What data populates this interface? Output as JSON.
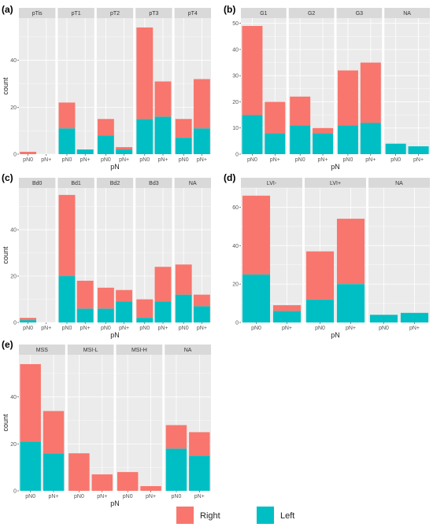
{
  "colors": {
    "right": "#F8766D",
    "left": "#00BFC4",
    "panel_bg": "#EBEBEB",
    "strip_bg": "#D9D9D9",
    "grid": "#FFFFFF"
  },
  "legend": {
    "right_label": "Right",
    "left_label": "Left"
  },
  "chart_data": [
    {
      "tag": "(a)",
      "type": "bar",
      "stacked": true,
      "xlabel": "pN",
      "ylabel": "count",
      "ylim": [
        0,
        58
      ],
      "yticks": [
        0,
        20,
        40
      ],
      "facets": [
        {
          "label": "pTis",
          "categories": [
            "pN0",
            "pN+"
          ],
          "series": [
            {
              "name": "Left",
              "values": [
                0,
                0
              ]
            },
            {
              "name": "Right",
              "values": [
                1,
                0
              ]
            }
          ]
        },
        {
          "label": "pT1",
          "categories": [
            "pN0",
            "pN+"
          ],
          "series": [
            {
              "name": "Left",
              "values": [
                11,
                2
              ]
            },
            {
              "name": "Right",
              "values": [
                11,
                0
              ]
            }
          ]
        },
        {
          "label": "pT2",
          "categories": [
            "pN0",
            "pN+"
          ],
          "series": [
            {
              "name": "Left",
              "values": [
                8,
                2
              ]
            },
            {
              "name": "Right",
              "values": [
                7,
                1
              ]
            }
          ]
        },
        {
          "label": "pT3",
          "categories": [
            "pN0",
            "pN+"
          ],
          "series": [
            {
              "name": "Left",
              "values": [
                15,
                16
              ]
            },
            {
              "name": "Right",
              "values": [
                39,
                15
              ]
            }
          ]
        },
        {
          "label": "pT4",
          "categories": [
            "pN0",
            "pN+"
          ],
          "series": [
            {
              "name": "Left",
              "values": [
                7,
                11
              ]
            },
            {
              "name": "Right",
              "values": [
                8,
                21
              ]
            }
          ]
        }
      ]
    },
    {
      "tag": "(b)",
      "type": "bar",
      "stacked": true,
      "xlabel": "pN",
      "ylabel": "",
      "ylim": [
        0,
        52
      ],
      "yticks": [
        0,
        10,
        20,
        30,
        40,
        50
      ],
      "facets": [
        {
          "label": "G1",
          "categories": [
            "pN0",
            "pN+"
          ],
          "series": [
            {
              "name": "Left",
              "values": [
                15,
                8
              ]
            },
            {
              "name": "Right",
              "values": [
                34,
                12
              ]
            }
          ]
        },
        {
          "label": "G2",
          "categories": [
            "pN0",
            "pN+"
          ],
          "series": [
            {
              "name": "Left",
              "values": [
                11,
                8
              ]
            },
            {
              "name": "Right",
              "values": [
                11,
                2
              ]
            }
          ]
        },
        {
          "label": "G3",
          "categories": [
            "pN0",
            "pN+"
          ],
          "series": [
            {
              "name": "Left",
              "values": [
                11,
                12
              ]
            },
            {
              "name": "Right",
              "values": [
                21,
                23
              ]
            }
          ]
        },
        {
          "label": "NA",
          "categories": [
            "pN0",
            "pN+"
          ],
          "series": [
            {
              "name": "Left",
              "values": [
                4,
                3
              ]
            },
            {
              "name": "Right",
              "values": [
                0,
                0
              ]
            }
          ]
        }
      ]
    },
    {
      "tag": "(c)",
      "type": "bar",
      "stacked": true,
      "xlabel": "pN",
      "ylabel": "count",
      "ylim": [
        0,
        58
      ],
      "yticks": [
        0,
        20,
        40
      ],
      "facets": [
        {
          "label": "Bd0",
          "categories": [
            "pN0",
            "pN+"
          ],
          "series": [
            {
              "name": "Left",
              "values": [
                1,
                0
              ]
            },
            {
              "name": "Right",
              "values": [
                1,
                0
              ]
            }
          ]
        },
        {
          "label": "Bd1",
          "categories": [
            "pN0",
            "pN+"
          ],
          "series": [
            {
              "name": "Left",
              "values": [
                20,
                6
              ]
            },
            {
              "name": "Right",
              "values": [
                35,
                12
              ]
            }
          ]
        },
        {
          "label": "Bd2",
          "categories": [
            "pN0",
            "pN+"
          ],
          "series": [
            {
              "name": "Left",
              "values": [
                6,
                9
              ]
            },
            {
              "name": "Right",
              "values": [
                9,
                5
              ]
            }
          ]
        },
        {
          "label": "Bd3",
          "categories": [
            "pN0",
            "pN+"
          ],
          "series": [
            {
              "name": "Left",
              "values": [
                2,
                9
              ]
            },
            {
              "name": "Right",
              "values": [
                8,
                15
              ]
            }
          ]
        },
        {
          "label": "NA",
          "categories": [
            "pN0",
            "pN+"
          ],
          "series": [
            {
              "name": "Left",
              "values": [
                12,
                7
              ]
            },
            {
              "name": "Right",
              "values": [
                13,
                5
              ]
            }
          ]
        }
      ]
    },
    {
      "tag": "(d)",
      "type": "bar",
      "stacked": true,
      "xlabel": "pN",
      "ylabel": "",
      "ylim": [
        0,
        70
      ],
      "yticks": [
        0,
        20,
        40,
        60
      ],
      "facets": [
        {
          "label": "LVI-",
          "categories": [
            "pN0",
            "pN+"
          ],
          "series": [
            {
              "name": "Left",
              "values": [
                25,
                6
              ]
            },
            {
              "name": "Right",
              "values": [
                41,
                3
              ]
            }
          ]
        },
        {
          "label": "LVI+",
          "categories": [
            "pN0",
            "pN+"
          ],
          "series": [
            {
              "name": "Left",
              "values": [
                12,
                20
              ]
            },
            {
              "name": "Right",
              "values": [
                25,
                34
              ]
            }
          ]
        },
        {
          "label": "NA",
          "categories": [
            "pN0",
            "pN+"
          ],
          "series": [
            {
              "name": "Left",
              "values": [
                4,
                5
              ]
            },
            {
              "name": "Right",
              "values": [
                0,
                0
              ]
            }
          ]
        }
      ]
    },
    {
      "tag": "(e)",
      "type": "bar",
      "stacked": true,
      "xlabel": "pN",
      "ylabel": "count",
      "ylim": [
        0,
        58
      ],
      "yticks": [
        0,
        20,
        40
      ],
      "facets": [
        {
          "label": "MSS",
          "categories": [
            "pN0",
            "pN+"
          ],
          "series": [
            {
              "name": "Left",
              "values": [
                21,
                16
              ]
            },
            {
              "name": "Right",
              "values": [
                33,
                18
              ]
            }
          ]
        },
        {
          "label": "MSI-L",
          "categories": [
            "pN0",
            "pN+"
          ],
          "series": [
            {
              "name": "Left",
              "values": [
                0,
                0
              ]
            },
            {
              "name": "Right",
              "values": [
                16,
                7
              ]
            }
          ]
        },
        {
          "label": "MSI-H",
          "categories": [
            "pN0",
            "pN+"
          ],
          "series": [
            {
              "name": "Left",
              "values": [
                0,
                0
              ]
            },
            {
              "name": "Right",
              "values": [
                8,
                2
              ]
            }
          ]
        },
        {
          "label": "NA",
          "categories": [
            "pN0",
            "pN+"
          ],
          "series": [
            {
              "name": "Left",
              "values": [
                18,
                15
              ]
            },
            {
              "name": "Right",
              "values": [
                10,
                10
              ]
            }
          ]
        }
      ]
    }
  ]
}
